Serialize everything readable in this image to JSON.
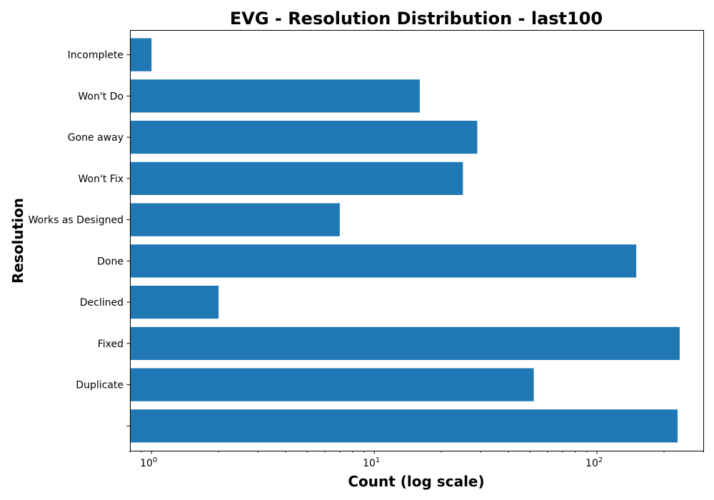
{
  "chart_data": {
    "type": "bar",
    "orientation": "horizontal",
    "title": "EVG - Resolution Distribution - last100",
    "xlabel": "Count (log scale)",
    "ylabel": "Resolution",
    "xscale": "log",
    "xlim": [
      0.8,
      300
    ],
    "x_ticks": [
      {
        "value": 1,
        "label": "10",
        "exp": "0"
      },
      {
        "value": 10,
        "label": "10",
        "exp": "1"
      },
      {
        "value": 100,
        "label": "10",
        "exp": "2"
      }
    ],
    "categories": [
      "",
      "Duplicate",
      "Fixed",
      "Declined",
      "Done",
      "Works as Designed",
      "Won't Fix",
      "Gone away",
      "Won't Do",
      "Incomplete"
    ],
    "values": [
      230,
      52,
      235,
      2,
      150,
      7,
      25,
      29,
      16,
      1
    ],
    "bar_color": "#1f77b4",
    "grid": false,
    "legend": "none"
  }
}
